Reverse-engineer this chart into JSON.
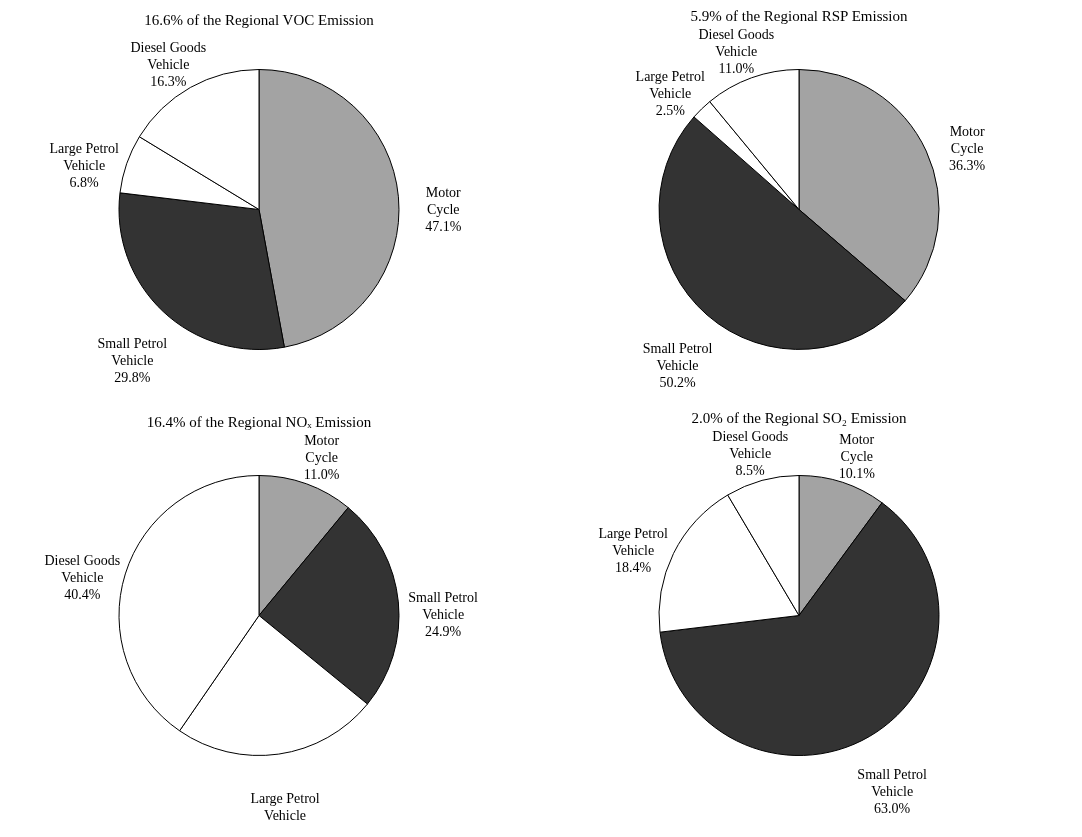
{
  "chart_data": [
    {
      "type": "pie",
      "title": "16.6% of the Regional VOC Emission",
      "categories": [
        "Motor Cycle",
        "Small Petrol Vehicle",
        "Large Petrol Vehicle",
        "Diesel Goods Vehicle"
      ],
      "values": [
        47.1,
        29.8,
        6.8,
        16.3
      ],
      "colors": [
        "#a3a3a3",
        "#333333",
        "#ffffff",
        "#ffffff"
      ],
      "value_labels": [
        "47.1%",
        "29.8%",
        "6.8%",
        "16.3%"
      ]
    },
    {
      "type": "pie",
      "title": "5.9% of the Regional RSP Emission",
      "categories": [
        "Motor Cycle",
        "Small Petrol Vehicle",
        "Large Petrol Vehicle",
        "Diesel Goods Vehicle"
      ],
      "values": [
        36.3,
        50.2,
        2.5,
        11.0
      ],
      "colors": [
        "#a3a3a3",
        "#333333",
        "#ffffff",
        "#ffffff"
      ],
      "value_labels": [
        "36.3%",
        "50.2%",
        "2.5%",
        "11.0%"
      ]
    },
    {
      "type": "pie",
      "title": "16.4% of the Regional NOₓ Emission",
      "categories": [
        "Motor Cycle",
        "Small Petrol Vehicle",
        "Large Petrol Vehicle",
        "Diesel Goods Vehicle"
      ],
      "values": [
        11.0,
        24.9,
        23.7,
        40.4
      ],
      "colors": [
        "#a3a3a3",
        "#333333",
        "#ffffff",
        "#ffffff"
      ],
      "value_labels": [
        "11.0%",
        "24.9%",
        null,
        "40.4%"
      ]
    },
    {
      "type": "pie",
      "title": "2.0% of the Regional SO₂ Emission",
      "categories": [
        "Motor Cycle",
        "Small Petrol Vehicle",
        "Large Petrol Vehicle",
        "Diesel Goods Vehicle"
      ],
      "values": [
        10.1,
        63.0,
        18.4,
        8.5
      ],
      "colors": [
        "#a3a3a3",
        "#333333",
        "#ffffff",
        "#ffffff"
      ],
      "value_labels": [
        "10.1%",
        "63.0%",
        "18.4%",
        "8.5%"
      ]
    }
  ]
}
